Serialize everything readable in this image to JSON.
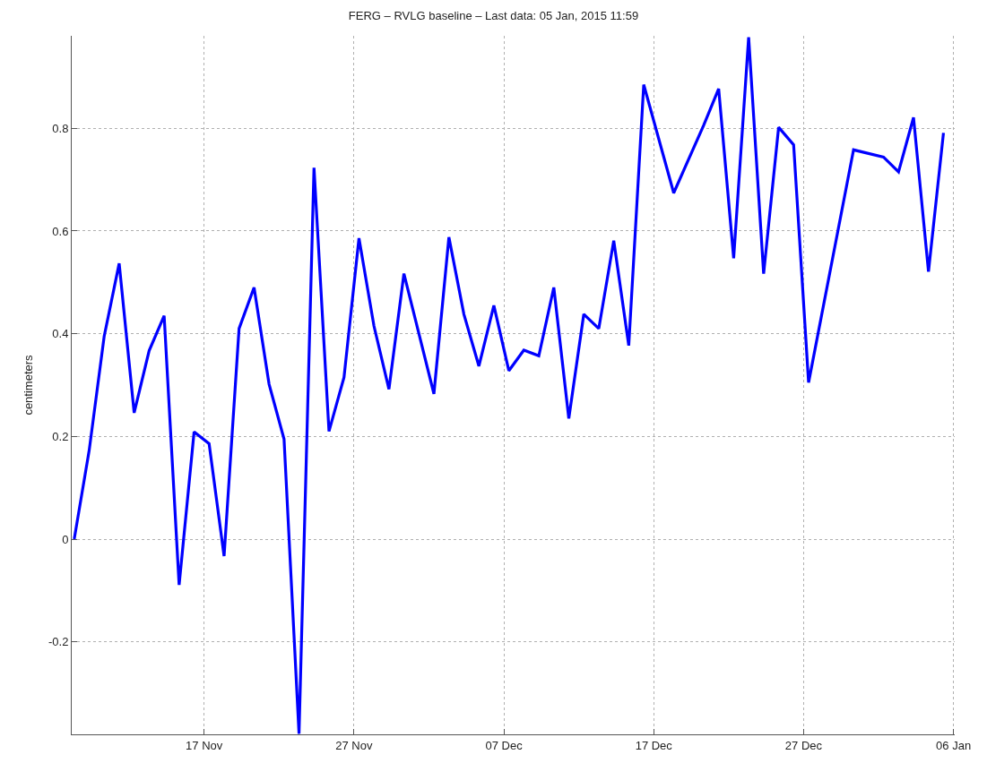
{
  "chart_data": {
    "type": "line",
    "title": "FERG – RVLG baseline – Last data: 05 Jan, 2015 11:59",
    "ylabel": "centimeters",
    "x": [
      "2014-11-08T08:00",
      "2014-11-09T08:00",
      "2014-11-10T08:00",
      "2014-11-11T08:00",
      "2014-11-12T08:00",
      "2014-11-13T08:00",
      "2014-11-14T08:00",
      "2014-11-15T08:00",
      "2014-11-16T08:00",
      "2014-11-17T08:00",
      "2014-11-18T08:00",
      "2014-11-19T08:00",
      "2014-11-20T08:00",
      "2014-11-21T08:00",
      "2014-11-22T08:00",
      "2014-11-23T08:00",
      "2014-11-24T08:00",
      "2014-11-25T08:00",
      "2014-11-26T08:00",
      "2014-11-27T08:00",
      "2014-11-28T08:00",
      "2014-11-29T08:00",
      "2014-11-30T08:00",
      "2014-12-01T08:00",
      "2014-12-02T08:00",
      "2014-12-03T08:00",
      "2014-12-04T08:00",
      "2014-12-05T08:00",
      "2014-12-06T08:00",
      "2014-12-07T08:00",
      "2014-12-08T08:00",
      "2014-12-09T08:00",
      "2014-12-10T08:00",
      "2014-12-11T08:00",
      "2014-12-12T08:00",
      "2014-12-13T08:00",
      "2014-12-14T08:00",
      "2014-12-15T08:00",
      "2014-12-16T08:00",
      "2014-12-18T08:00",
      "2014-12-20T08:00",
      "2014-12-21T08:00",
      "2014-12-22T08:00",
      "2014-12-23T08:00",
      "2014-12-24T08:00",
      "2014-12-25T08:00",
      "2014-12-26T08:00",
      "2014-12-27T08:00",
      "2014-12-30T08:00",
      "2015-01-01T08:00",
      "2015-01-02T08:00",
      "2015-01-03T08:00",
      "2015-01-04T08:00",
      "2015-01-05T08:00"
    ],
    "series": [
      {
        "color": "#0000ff",
        "values": [
          0,
          0.173,
          0.395,
          0.537,
          0.246,
          0.367,
          0.435,
          -0.089,
          0.209,
          0.186,
          -0.033,
          0.41,
          0.49,
          0.302,
          0.195,
          -0.379,
          0.723,
          0.21,
          0.315,
          0.586,
          0.415,
          0.292,
          0.517,
          0.4,
          0.283,
          0.588,
          0.438,
          0.337,
          0.455,
          0.328,
          0.368,
          0.357,
          0.49,
          0.235,
          0.438,
          0.41,
          0.581,
          0.377,
          0.885,
          0.674,
          0.806,
          0.877,
          0.547,
          0.977,
          0.517,
          0.802,
          0.768,
          0.305,
          0.758,
          0.744,
          0.715,
          0.821,
          0.521,
          0.791
        ]
      }
    ],
    "xlim": [
      "2014-11-08T04:00",
      "2015-01-06T02:00"
    ],
    "xticks": [
      {
        "value": "2014-11-17",
        "label": "17 Nov"
      },
      {
        "value": "2014-11-27",
        "label": "27 Nov"
      },
      {
        "value": "2014-12-07",
        "label": "07 Dec"
      },
      {
        "value": "2014-12-17",
        "label": "17 Dec"
      },
      {
        "value": "2014-12-27",
        "label": "27 Dec"
      },
      {
        "value": "2015-01-06",
        "label": "06 Jan"
      }
    ],
    "ylim": [
      -0.38,
      0.98
    ],
    "yticks": [
      -0.2,
      0,
      0.2,
      0.4,
      0.6,
      0.8
    ],
    "grid": true,
    "marker": "none",
    "line_style": "solid"
  }
}
